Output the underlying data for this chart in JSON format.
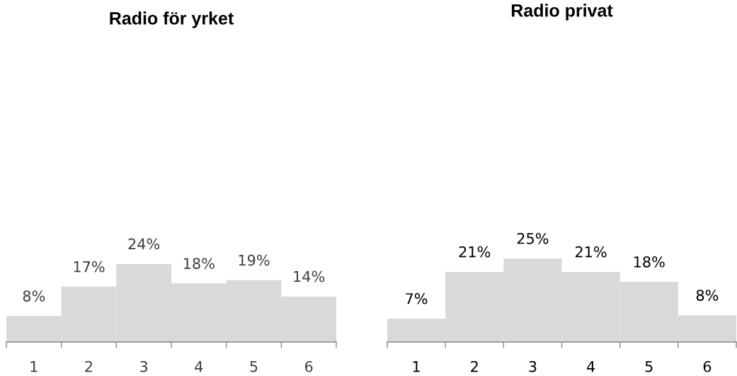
{
  "chart_data": [
    {
      "type": "bar",
      "title": "Radio för yrket",
      "categories": [
        "1",
        "2",
        "3",
        "4",
        "5",
        "6"
      ],
      "values": [
        8,
        17,
        24,
        18,
        19,
        14
      ],
      "value_labels": [
        "8%",
        "17%",
        "24%",
        "18%",
        "19%",
        "14%"
      ],
      "color": "#d9d9d9"
    },
    {
      "type": "bar",
      "title": "Radio privat",
      "categories": [
        "1",
        "2",
        "3",
        "4",
        "5",
        "6"
      ],
      "values": [
        7,
        21,
        25,
        21,
        18,
        8
      ],
      "value_labels": [
        "7%",
        "21%",
        "25%",
        "21%",
        "18%",
        "8%"
      ],
      "color": "#d9d9d9"
    }
  ]
}
